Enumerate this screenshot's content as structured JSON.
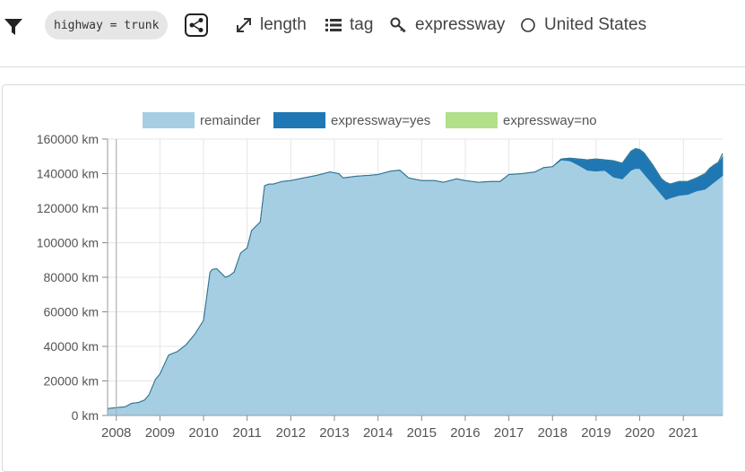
{
  "toolbar": {
    "filter_icon": "filter-icon",
    "filter_chip": "highway = trunk",
    "share_icon": "share-icon",
    "items": [
      {
        "icon": "expand-arrows-icon",
        "label": "length"
      },
      {
        "icon": "list-icon",
        "label": "tag"
      },
      {
        "icon": "key-icon",
        "label": "expressway"
      },
      {
        "icon": "circle-icon",
        "label": "United States"
      }
    ]
  },
  "chart_data": {
    "type": "area",
    "stacked": true,
    "legend_position": "top",
    "grid": true,
    "y_unit": "km",
    "ylim": [
      0,
      160000
    ],
    "yticks": [
      "0 km",
      "20000 km",
      "40000 km",
      "60000 km",
      "80000 km",
      "100000 km",
      "120000 km",
      "140000 km",
      "160000 km"
    ],
    "xlim": [
      2007.8,
      2021.9
    ],
    "xticks": [
      "2008",
      "2009",
      "2010",
      "2011",
      "2012",
      "2013",
      "2014",
      "2015",
      "2016",
      "2017",
      "2018",
      "2019",
      "2020",
      "2021"
    ],
    "x": [
      2007.8,
      2008.0,
      2008.2,
      2008.35,
      2008.5,
      2008.65,
      2008.75,
      2008.9,
      2009.0,
      2009.2,
      2009.4,
      2009.6,
      2009.8,
      2010.0,
      2010.15,
      2010.2,
      2010.3,
      2010.5,
      2010.6,
      2010.7,
      2010.85,
      2011.0,
      2011.1,
      2011.3,
      2011.4,
      2011.5,
      2011.6,
      2011.8,
      2012.0,
      2012.3,
      2012.6,
      2012.9,
      2013.1,
      2013.2,
      2013.5,
      2013.8,
      2014.0,
      2014.3,
      2014.5,
      2014.7,
      2015.0,
      2015.3,
      2015.5,
      2015.8,
      2016.0,
      2016.3,
      2016.6,
      2016.8,
      2017.0,
      2017.3,
      2017.6,
      2017.8,
      2018.0,
      2018.2,
      2018.4,
      2018.6,
      2018.8,
      2019.0,
      2019.2,
      2019.4,
      2019.6,
      2019.8,
      2019.9,
      2020.0,
      2020.1,
      2020.3,
      2020.5,
      2020.6,
      2020.7,
      2020.9,
      2021.1,
      2021.3,
      2021.5,
      2021.6,
      2021.7,
      2021.8,
      2021.9
    ],
    "series": [
      {
        "name": "remainder",
        "color": "#a6cee3",
        "values": [
          4000,
          4500,
          5000,
          7000,
          7500,
          9000,
          12000,
          21000,
          24000,
          35000,
          37000,
          41000,
          47000,
          55000,
          83000,
          84500,
          85000,
          80000,
          81000,
          83000,
          94000,
          97000,
          107000,
          112000,
          133000,
          134000,
          134000,
          135500,
          136000,
          137500,
          139000,
          141000,
          140000,
          137500,
          138500,
          139000,
          139500,
          141500,
          142000,
          137500,
          136000,
          136000,
          135000,
          137000,
          136000,
          135000,
          135500,
          135500,
          139500,
          140000,
          141000,
          143500,
          144000,
          148000,
          147500,
          145000,
          142000,
          141500,
          142000,
          138000,
          137000,
          142000,
          143000,
          143000,
          140000,
          134000,
          128000,
          125000,
          126000,
          127500,
          128000,
          130000,
          131000,
          133000,
          135000,
          137000,
          139000
        ]
      },
      {
        "name": "expressway=yes",
        "color": "#1f78b4",
        "values": [
          0,
          0,
          0,
          0,
          0,
          0,
          0,
          0,
          0,
          0,
          0,
          0,
          0,
          0,
          0,
          0,
          0,
          0,
          0,
          0,
          0,
          0,
          0,
          0,
          0,
          0,
          0,
          0,
          0,
          0,
          0,
          0,
          0,
          0,
          0,
          0,
          0,
          0,
          0,
          0,
          0,
          0,
          0,
          0,
          0,
          0,
          0,
          0,
          0,
          0,
          0,
          0,
          0,
          500,
          1500,
          3500,
          6000,
          7000,
          6000,
          9500,
          9000,
          11000,
          11500,
          11000,
          12000,
          11000,
          9000,
          10000,
          8000,
          8000,
          7500,
          7500,
          9000,
          10000,
          10000,
          9500,
          11500
        ]
      },
      {
        "name": "expressway=no",
        "color": "#b2df8a",
        "values": [
          0,
          0,
          0,
          0,
          0,
          0,
          0,
          0,
          0,
          0,
          0,
          0,
          0,
          0,
          0,
          0,
          0,
          0,
          0,
          0,
          0,
          0,
          0,
          0,
          0,
          0,
          0,
          0,
          0,
          0,
          0,
          0,
          0,
          0,
          0,
          0,
          0,
          0,
          0,
          0,
          0,
          0,
          0,
          0,
          0,
          0,
          0,
          0,
          0,
          0,
          0,
          0,
          0,
          0,
          0,
          0,
          0,
          0,
          0,
          0,
          0,
          0,
          0,
          0,
          0,
          0,
          0,
          0,
          0,
          0,
          0,
          0,
          0,
          0,
          0,
          0,
          1200
        ]
      }
    ]
  }
}
